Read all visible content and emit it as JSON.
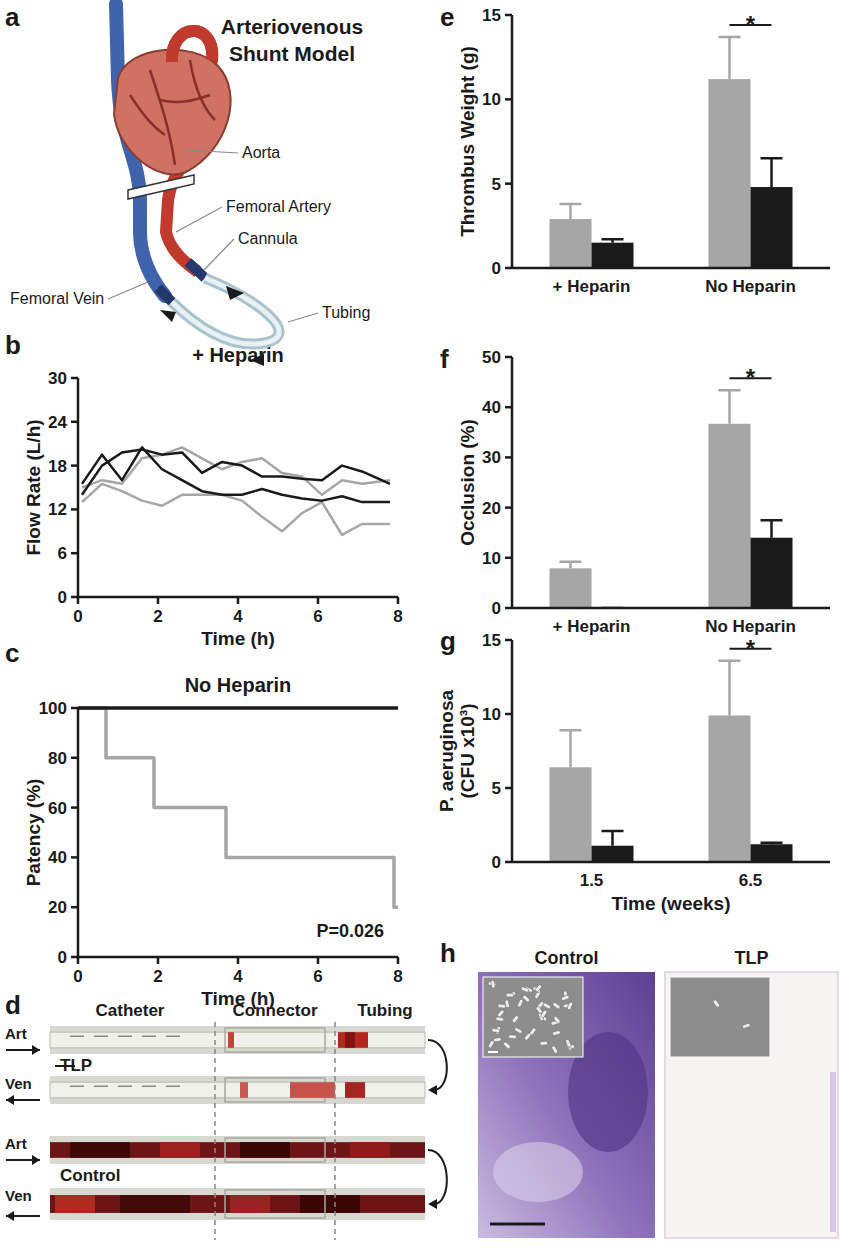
{
  "chart_data": [
    {
      "type": "line",
      "panel_label": "b",
      "title": "+ Heparin",
      "x_label": "Time (h)",
      "y_label": "Flow Rate (L/h)",
      "x": [
        0.1,
        0.6,
        1.1,
        1.6,
        2.1,
        2.6,
        3.1,
        3.6,
        4.1,
        4.6,
        5.1,
        5.6,
        6.1,
        6.6,
        7.1,
        7.8
      ],
      "series": [
        {
          "color": "#a6a6a6",
          "values": [
            15,
            16,
            15.5,
            19,
            19.5,
            20.5,
            19,
            17.5,
            18.5,
            19,
            17,
            16.5,
            14,
            16,
            15.5,
            16
          ]
        },
        {
          "color": "#a6a6a6",
          "values": [
            13,
            15.5,
            14.5,
            13.2,
            12.5,
            14,
            14,
            14,
            13.2,
            11,
            9,
            11.5,
            13,
            8.5,
            10,
            10
          ]
        },
        {
          "color": "#1a1a1a",
          "values": [
            14,
            18,
            19.8,
            20.2,
            19.5,
            19.8,
            17,
            18.5,
            18,
            16.5,
            16.5,
            16.2,
            16,
            18,
            17.2,
            15.5
          ]
        },
        {
          "color": "#1a1a1a",
          "values": [
            15.5,
            19.5,
            16,
            20.5,
            17.5,
            16,
            14.5,
            14,
            14,
            14.8,
            14,
            13.5,
            13.2,
            13.8,
            13,
            13
          ]
        }
      ],
      "xlim": [
        0,
        8
      ],
      "xticks": [
        0,
        2,
        4,
        6,
        8
      ],
      "ylim": [
        0,
        30
      ],
      "yticks": [
        0,
        6,
        12,
        18,
        24,
        30
      ]
    },
    {
      "type": "step",
      "panel_label": "c",
      "title": "No Heparin",
      "x_label": "Time (h)",
      "y_label": "Patency (%)",
      "series": [
        {
          "color": "#a6a6a6",
          "x": [
            0,
            0.7,
            1.9,
            3.7,
            7.9,
            8
          ],
          "values": [
            100,
            80,
            60,
            40,
            20,
            20
          ]
        },
        {
          "color": "#1a1a1a",
          "x": [
            0,
            8
          ],
          "values": [
            100,
            100
          ]
        }
      ],
      "xlim": [
        0,
        8
      ],
      "xticks": [
        0,
        2,
        4,
        6,
        8
      ],
      "ylim": [
        0,
        100
      ],
      "yticks": [
        0,
        20,
        40,
        60,
        80,
        100
      ],
      "annotations": [
        {
          "text": "P=0.026"
        }
      ]
    },
    {
      "type": "bar",
      "panel_label": "e",
      "y_label": "Thrombus Weight (g)",
      "categories": [
        "+ Heparin",
        "No Heparin"
      ],
      "series": [
        {
          "color": "#a6a6a6",
          "values": [
            2.9,
            11.2
          ],
          "errors": [
            0.9,
            2.5
          ]
        },
        {
          "color": "#1a1a1a",
          "values": [
            1.5,
            4.8
          ],
          "errors": [
            0.2,
            1.7
          ]
        }
      ],
      "ylim": [
        0,
        15
      ],
      "yticks": [
        0,
        5,
        10,
        15
      ],
      "annotations": [
        {
          "text": "*",
          "category": "No Heparin"
        }
      ]
    },
    {
      "type": "bar",
      "panel_label": "f",
      "y_label": "Occlusion (%)",
      "categories": [
        "+ Heparin",
        "No Heparin"
      ],
      "series": [
        {
          "color": "#a6a6a6",
          "values": [
            7.9,
            36.7
          ],
          "errors": [
            1.3,
            6.7
          ]
        },
        {
          "color": "#1a1a1a",
          "values": [
            0,
            14.0
          ],
          "errors": [
            0,
            3.5
          ]
        }
      ],
      "ylim": [
        0,
        50
      ],
      "yticks": [
        0,
        10,
        20,
        30,
        40,
        50
      ],
      "annotations": [
        {
          "text": "*",
          "category": "No Heparin"
        }
      ]
    },
    {
      "type": "bar",
      "panel_label": "g",
      "x_label": "Time (weeks)",
      "y_label": [
        "P. aeruginosa",
        "(CFU x10³)"
      ],
      "categories": [
        "1.5",
        "6.5"
      ],
      "series": [
        {
          "color": "#a6a6a6",
          "values": [
            6.4,
            9.9
          ],
          "errors": [
            2.5,
            3.7
          ]
        },
        {
          "color": "#1a1a1a",
          "values": [
            1.1,
            1.2
          ],
          "errors": [
            1.0,
            0.1
          ]
        }
      ],
      "ylim": [
        0,
        15
      ],
      "yticks": [
        0,
        5,
        10,
        15
      ],
      "annotations": [
        {
          "text": "*",
          "category": "6.5"
        }
      ]
    }
  ],
  "diagram": {
    "panel_label": "a",
    "title": [
      "Arteriovenous",
      "Shunt Model"
    ],
    "labels": [
      "Aorta",
      "Femoral Artery",
      "Cannula",
      "Femoral Vein",
      "Tubing"
    ]
  },
  "photos": {
    "panel_label": "d",
    "sections": [
      "Catheter",
      "Connector",
      "Tubing"
    ],
    "groups": [
      {
        "name": "TLP",
        "rows": [
          "Art",
          "Ven"
        ]
      },
      {
        "name": "Control",
        "rows": [
          "Art",
          "Ven"
        ]
      }
    ]
  },
  "stains": {
    "panel_label": "h",
    "panels": [
      "Control",
      "TLP"
    ]
  }
}
